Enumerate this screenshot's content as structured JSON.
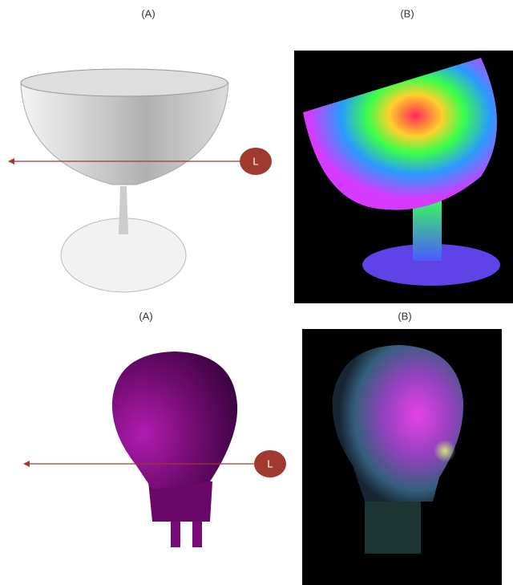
{
  "panels": [
    {
      "label": "(A)"
    },
    {
      "label": "(B)"
    },
    {
      "label": "(A)"
    },
    {
      "label": "(B)"
    }
  ],
  "markers": [
    {
      "label": "L"
    },
    {
      "label": "L"
    }
  ]
}
